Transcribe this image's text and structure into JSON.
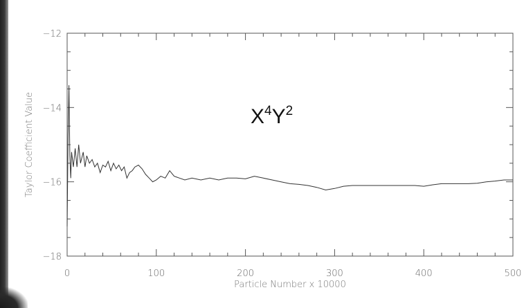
{
  "chart_data": {
    "type": "line",
    "title": "",
    "annotation": {
      "base1": "X",
      "sup1": "4",
      "base2": "Y",
      "sup2": "2"
    },
    "xlabel": "Particle Number x 10000",
    "ylabel": "Taylor Coefficient Value",
    "xlim": [
      0,
      500
    ],
    "ylim": [
      -18,
      -12
    ],
    "xticks": [
      0,
      100,
      200,
      300,
      400,
      500
    ],
    "yticks": [
      -18,
      -16,
      -14,
      -12
    ],
    "grid": false,
    "series": [
      {
        "values": [
          [
            0,
            -17.2
          ],
          [
            1,
            -14.8
          ],
          [
            2,
            -13.4
          ],
          [
            3,
            -15.3
          ],
          [
            4,
            -15.9
          ],
          [
            5,
            -15.2
          ],
          [
            7,
            -15.6
          ],
          [
            9,
            -15.1
          ],
          [
            11,
            -15.6
          ],
          [
            13,
            -15.0
          ],
          [
            15,
            -15.5
          ],
          [
            18,
            -15.2
          ],
          [
            20,
            -15.6
          ],
          [
            22,
            -15.3
          ],
          [
            25,
            -15.5
          ],
          [
            28,
            -15.4
          ],
          [
            31,
            -15.6
          ],
          [
            34,
            -15.5
          ],
          [
            37,
            -15.75
          ],
          [
            40,
            -15.55
          ],
          [
            43,
            -15.6
          ],
          [
            46,
            -15.45
          ],
          [
            49,
            -15.7
          ],
          [
            52,
            -15.5
          ],
          [
            55,
            -15.65
          ],
          [
            58,
            -15.55
          ],
          [
            61,
            -15.7
          ],
          [
            64,
            -15.6
          ],
          [
            67,
            -15.9
          ],
          [
            70,
            -15.75
          ],
          [
            73,
            -15.7
          ],
          [
            76,
            -15.6
          ],
          [
            80,
            -15.55
          ],
          [
            84,
            -15.65
          ],
          [
            88,
            -15.8
          ],
          [
            92,
            -15.9
          ],
          [
            96,
            -16.0
          ],
          [
            100,
            -15.95
          ],
          [
            105,
            -15.85
          ],
          [
            110,
            -15.9
          ],
          [
            115,
            -15.7
          ],
          [
            120,
            -15.85
          ],
          [
            126,
            -15.9
          ],
          [
            132,
            -15.95
          ],
          [
            140,
            -15.9
          ],
          [
            150,
            -15.95
          ],
          [
            160,
            -15.9
          ],
          [
            170,
            -15.95
          ],
          [
            180,
            -15.9
          ],
          [
            190,
            -15.9
          ],
          [
            200,
            -15.92
          ],
          [
            210,
            -15.85
          ],
          [
            220,
            -15.9
          ],
          [
            230,
            -15.95
          ],
          [
            240,
            -16.0
          ],
          [
            250,
            -16.05
          ],
          [
            260,
            -16.07
          ],
          [
            270,
            -16.1
          ],
          [
            280,
            -16.15
          ],
          [
            290,
            -16.22
          ],
          [
            300,
            -16.18
          ],
          [
            310,
            -16.12
          ],
          [
            320,
            -16.1
          ],
          [
            330,
            -16.1
          ],
          [
            340,
            -16.1
          ],
          [
            350,
            -16.1
          ],
          [
            360,
            -16.1
          ],
          [
            370,
            -16.1
          ],
          [
            380,
            -16.1
          ],
          [
            390,
            -16.1
          ],
          [
            400,
            -16.12
          ],
          [
            410,
            -16.08
          ],
          [
            420,
            -16.05
          ],
          [
            430,
            -16.05
          ],
          [
            440,
            -16.05
          ],
          [
            450,
            -16.05
          ],
          [
            460,
            -16.04
          ],
          [
            470,
            -16.0
          ],
          [
            480,
            -15.98
          ],
          [
            490,
            -15.95
          ],
          [
            500,
            -15.95
          ]
        ]
      }
    ]
  }
}
